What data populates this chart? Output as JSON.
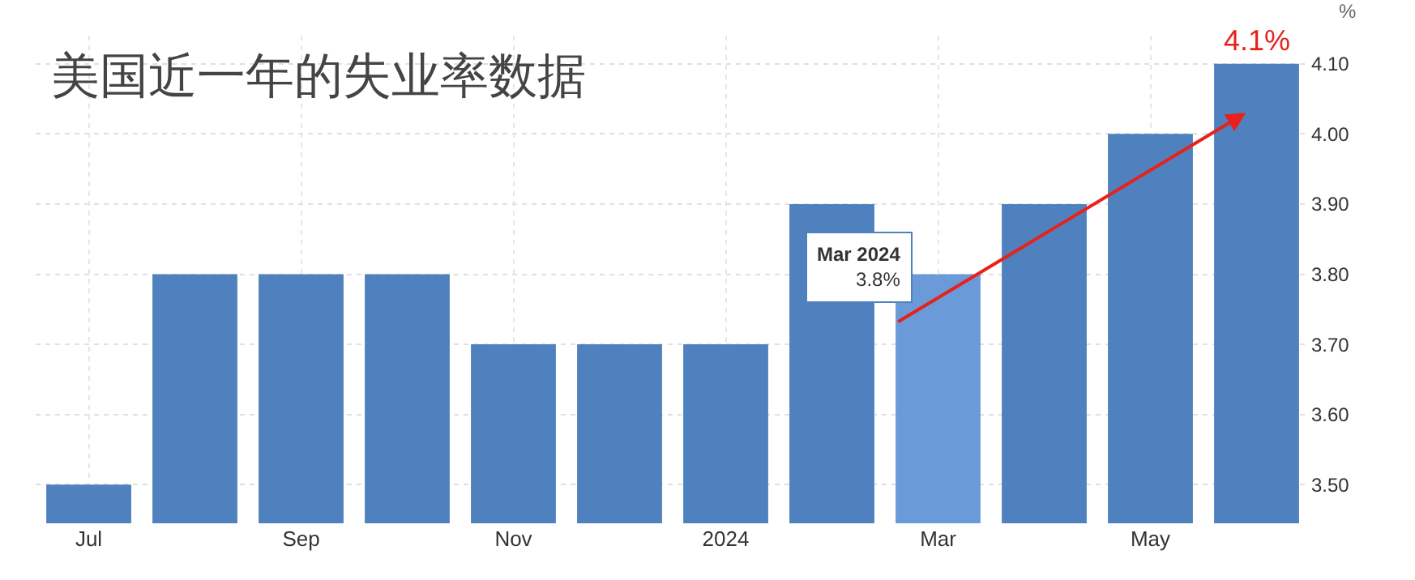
{
  "chart_data": {
    "type": "bar",
    "title": "美国近一年的失业率数据",
    "ylabel": "%",
    "categories": [
      "Jul",
      null,
      "Sep",
      null,
      "Nov",
      null,
      "2024",
      null,
      "Mar",
      null,
      "May",
      null
    ],
    "values": [
      3.5,
      3.8,
      3.8,
      3.8,
      3.7,
      3.7,
      3.7,
      3.9,
      3.8,
      3.9,
      4.0,
      4.1
    ],
    "colors": [
      "#4e81bd",
      "#4e81bd",
      "#4e81bd",
      "#4e81bd",
      "#4e81bd",
      "#4e81bd",
      "#4e81bd",
      "#4e81bd",
      "#6a9bd8",
      "#4e81bd",
      "#4e81bd",
      "#4e81bd"
    ],
    "ylim": [
      3.445,
      4.14
    ],
    "yticks": [
      {
        "value": 3.5,
        "label": "3.50"
      },
      {
        "value": 3.6,
        "label": "3.60"
      },
      {
        "value": 3.7,
        "label": "3.70"
      },
      {
        "value": 3.8,
        "label": "3.80"
      },
      {
        "value": 3.9,
        "label": "3.90"
      },
      {
        "value": 4.0,
        "label": "4.00"
      },
      {
        "value": 4.1,
        "label": "4.10"
      }
    ],
    "grid": true,
    "annotations": [
      {
        "text": "Mar 2024",
        "x": "Mar",
        "y": 3.8
      },
      {
        "text": "3.8%",
        "x": "Mar",
        "y": 3.8
      },
      "4.1%"
    ]
  }
}
